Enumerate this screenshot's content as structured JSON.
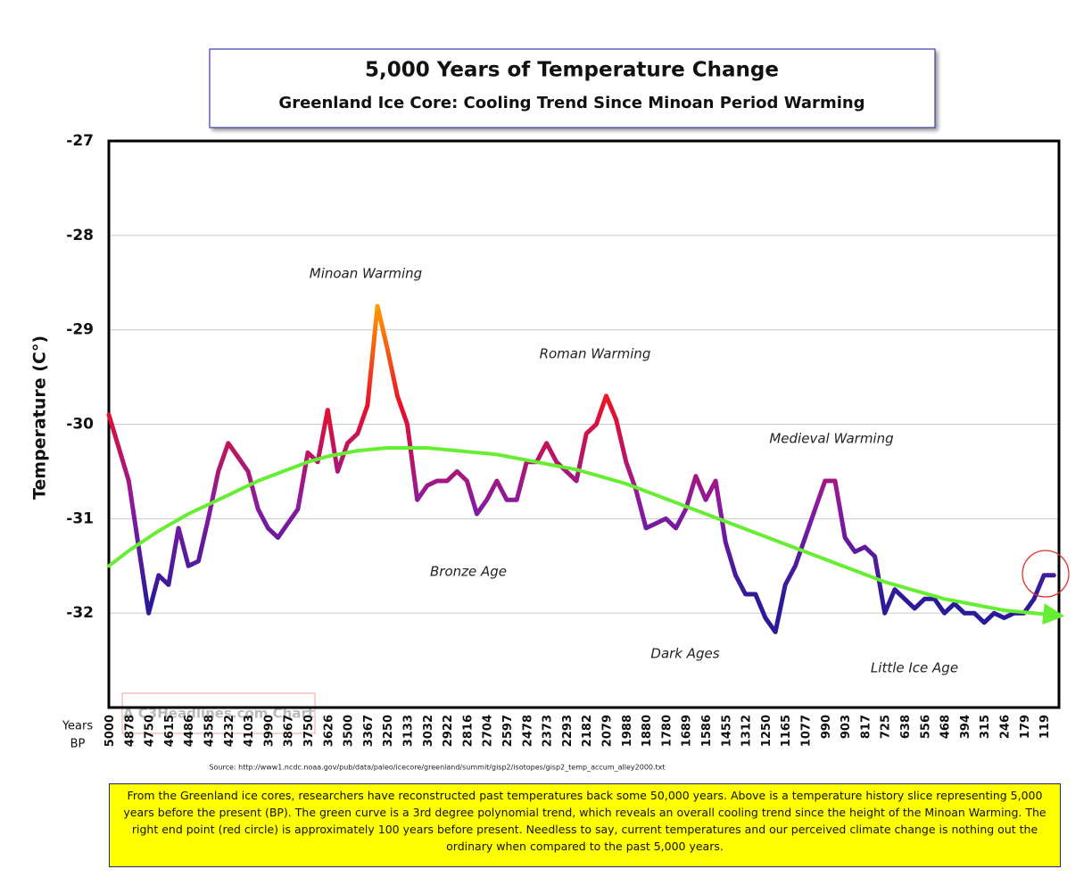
{
  "chart_data": {
    "type": "line",
    "title": "5,000 Years of Temperature Change",
    "subtitle": "Greenland Ice Core: Cooling Trend Since Minoan Period Warming",
    "y_label": "Temperature (C°)",
    "x_label": [
      "Years",
      "BP"
    ],
    "watermark": "A C3Headlines.com Chart",
    "source": "Source: http://www1.ncdc.noaa.gov/pub/data/paleo/icecore/greenland/summit/gisp2/isotopes/gisp2_temp_accum_alley2000.txt",
    "note": "From the Greenland ice cores, researchers have reconstructed past temperatures back some 50,000 years. Above is a temperature history slice representing 5,000 years before the present (BP). The green curve is a 3rd degree polynomial trend, which reveals an overall cooling trend since the height of the Minoan Warming. The right end point (red circle) is approximately 100 years before present. Needless to say, current temperatures and our perceived climate change is nothing out the ordinary when compared to the past 5,000 years.",
    "annotations": [
      "Minoan Warming",
      "Roman Warming",
      "Medieval Warming",
      "Bronze Age",
      "Dark Ages",
      "Little Ice Age"
    ],
    "categories": [
      "5000",
      null,
      "4878",
      null,
      "4750",
      null,
      "4615",
      null,
      "4486",
      null,
      "4358",
      null,
      "4232",
      null,
      "4103",
      null,
      "3990",
      null,
      "3867",
      null,
      "3750",
      null,
      "3626",
      null,
      "3500",
      null,
      "3367",
      null,
      "3250",
      null,
      "3133",
      null,
      "3032",
      null,
      "2922",
      null,
      "2816",
      null,
      "2704",
      null,
      "2597",
      null,
      "2478",
      null,
      "2373",
      null,
      "2293",
      null,
      "2182",
      null,
      "2079",
      null,
      "1988",
      null,
      "1880",
      null,
      "1780",
      null,
      "1689",
      null,
      "1586",
      null,
      "1455",
      null,
      "1312",
      null,
      "1250",
      null,
      "1165",
      null,
      "1077",
      null,
      "990",
      null,
      "903",
      null,
      "817",
      null,
      "725",
      null,
      "638",
      null,
      "556",
      null,
      "468",
      null,
      "394",
      null,
      "315",
      null,
      "246",
      null,
      "179",
      null,
      "119",
      null
    ],
    "series": [
      {
        "color": "#2a1a9a",
        "gradient": [
          "#ff9a00",
          "#e8102a",
          "#8a1aa0",
          "#2a1a9a"
        ],
        "values": [
          -29.9,
          -30.25,
          -30.6,
          -31.3,
          -32.0,
          -31.6,
          -31.7,
          -31.1,
          -31.5,
          -31.45,
          -31.0,
          -30.5,
          -30.2,
          -30.35,
          -30.5,
          -30.9,
          -31.1,
          -31.2,
          -31.05,
          -30.9,
          -30.3,
          -30.4,
          -29.85,
          -30.5,
          -30.2,
          -30.1,
          -29.8,
          -28.75,
          -29.2,
          -29.7,
          -30.0,
          -30.8,
          -30.65,
          -30.6,
          -30.6,
          -30.5,
          -30.6,
          -30.95,
          -30.8,
          -30.6,
          -30.8,
          -30.8,
          -30.4,
          -30.4,
          -30.2,
          -30.4,
          -30.5,
          -30.6,
          -30.1,
          -30.0,
          -29.7,
          -29.95,
          -30.4,
          -30.7,
          -31.1,
          -31.05,
          -31.0,
          -31.1,
          -30.9,
          -30.55,
          -30.8,
          -30.6,
          -31.25,
          -31.6,
          -31.8,
          -31.8,
          -32.05,
          -32.2,
          -31.7,
          -31.5,
          -31.2,
          -30.9,
          -30.6,
          -30.6,
          -31.2,
          -31.35,
          -31.3,
          -31.4,
          -32.0,
          -31.75,
          -31.85,
          -31.95,
          -31.85,
          -31.85,
          -32.0,
          -31.9,
          -32.0,
          -32.0,
          -32.1,
          -32.0,
          -32.05,
          -32.0,
          -32.0,
          -31.85,
          -31.6,
          -31.6
        ]
      },
      {
        "color": "#66ee33",
        "values": [
          -31.5,
          -31.42,
          -31.34,
          -31.27,
          -31.2,
          -31.13,
          -31.07,
          -31.01,
          -30.95,
          -30.9,
          -30.85,
          -30.8,
          -30.75,
          -30.7,
          -30.65,
          -30.6,
          -30.56,
          -30.52,
          -30.48,
          -30.44,
          -30.4,
          -30.37,
          -30.34,
          -30.32,
          -30.3,
          -30.28,
          -30.27,
          -30.26,
          -30.25,
          -30.25,
          -30.25,
          -30.25,
          -30.25,
          -30.26,
          -30.27,
          -30.28,
          -30.29,
          -30.3,
          -30.31,
          -30.32,
          -30.34,
          -30.36,
          -30.38,
          -30.4,
          -30.42,
          -30.44,
          -30.46,
          -30.48,
          -30.51,
          -30.54,
          -30.57,
          -30.6,
          -30.63,
          -30.67,
          -30.71,
          -30.75,
          -30.79,
          -30.83,
          -30.87,
          -30.91,
          -30.95,
          -30.99,
          -31.03,
          -31.07,
          -31.11,
          -31.15,
          -31.19,
          -31.23,
          -31.27,
          -31.31,
          -31.35,
          -31.39,
          -31.43,
          -31.47,
          -31.51,
          -31.55,
          -31.59,
          -31.63,
          -31.67,
          -31.7,
          -31.73,
          -31.76,
          -31.79,
          -31.82,
          -31.85,
          -31.87,
          -31.89,
          -31.91,
          -31.93,
          -31.95,
          -31.97,
          -31.98,
          -31.99,
          -32.0,
          -32.01,
          -32.02
        ]
      }
    ],
    "ylim": [
      -33,
      -27
    ],
    "yticks": [
      -32,
      -31,
      -30,
      -29,
      -28,
      -27
    ],
    "grid": true
  }
}
